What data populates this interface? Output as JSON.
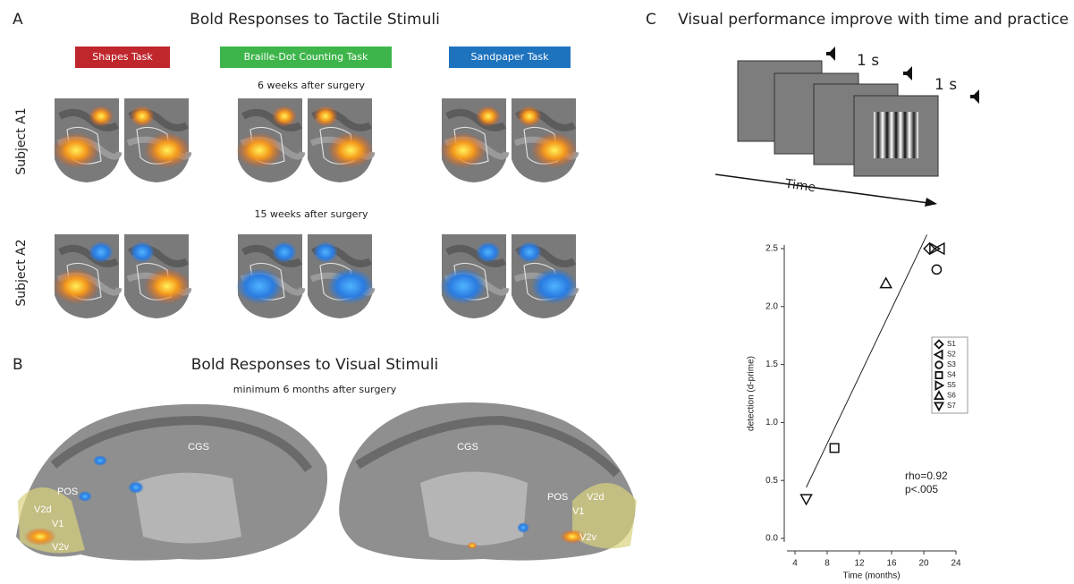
{
  "panel_a": {
    "letter": "A",
    "title": "Bold Responses to Tactile Stimuli",
    "tasks": [
      {
        "label": "Shapes Task",
        "color": "#c0272d"
      },
      {
        "label": "Braille-Dot Counting Task",
        "color": "#3db54a"
      },
      {
        "label": "Sandpaper Task",
        "color": "#1e73be"
      }
    ],
    "rows": [
      {
        "subject": "Subject A1",
        "time": "6 weeks after surgery"
      },
      {
        "subject": "Subject A2",
        "time": "15 weeks after surgery"
      }
    ]
  },
  "panel_b": {
    "letter": "B",
    "title": "Bold Responses to Visual Stimuli",
    "subtitle": "minimum 6 months after surgery",
    "left_labels": [
      "CGS",
      "POS",
      "V2d",
      "V1",
      "V2v"
    ],
    "right_labels": [
      "CGS",
      "POS",
      "V2d",
      "V1",
      "V2v"
    ]
  },
  "panel_c": {
    "letter": "C",
    "title": "Visual performance improve with time and practice",
    "intervals": [
      "1 s",
      "1 s"
    ],
    "arrow_label": "Time"
  },
  "chart_data": {
    "type": "scatter",
    "xlabel": "Time (months)",
    "ylabel": "detection (d-prime)",
    "xlim": [
      3,
      24
    ],
    "ylim": [
      0,
      2.5
    ],
    "xticks": [
      4,
      8,
      12,
      16,
      20,
      24
    ],
    "yticks": [
      {
        "value": 0,
        "label": "0.0"
      },
      {
        "value": 0.5,
        "label": "0.5"
      },
      {
        "value": 1,
        "label": "1.0"
      },
      {
        "value": 1.5,
        "label": "1.5"
      },
      {
        "value": 2,
        "label": "2.0"
      },
      {
        "value": 2.5,
        "label": "2.5"
      }
    ],
    "series": [
      {
        "name": "S1",
        "marker": "diamond",
        "x": [
          20.7
        ],
        "values": [
          2.5
        ]
      },
      {
        "name": "S2",
        "marker": "triangle-left",
        "x": [
          22
        ],
        "values": [
          2.5
        ]
      },
      {
        "name": "S3",
        "marker": "circle",
        "x": [
          21.6
        ],
        "values": [
          2.32
        ]
      },
      {
        "name": "S4",
        "marker": "square",
        "x": [
          8.9
        ],
        "values": [
          0.78
        ]
      },
      {
        "name": "S5",
        "marker": "triangle-right",
        "x": [
          21.3
        ],
        "values": [
          2.5
        ]
      },
      {
        "name": "S6",
        "marker": "triangle-up",
        "x": [
          15.3
        ],
        "values": [
          2.2
        ]
      },
      {
        "name": "S7",
        "marker": "triangle-down",
        "x": [
          5.4
        ],
        "values": [
          0.34
        ]
      }
    ],
    "fit_line": {
      "x": [
        5.4,
        20.4
      ],
      "values": [
        0.44,
        2.62
      ]
    },
    "annotations": [
      "rho=0.92",
      "p<.005"
    ]
  }
}
